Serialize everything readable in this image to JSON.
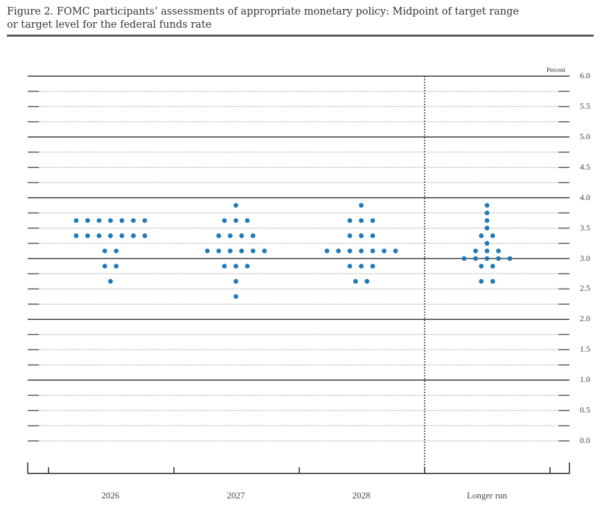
{
  "figure": {
    "title": "Figure 2. FOMC participants’ assessments of appropriate monetary policy: Midpoint of target range or target level for the federal funds rate",
    "title_line1": "Figure 2. FOMC participants’ assessments of appropriate monetary policy: Midpoint of target range",
    "title_line2": "or target level for the federal funds rate",
    "unit_label": "Percent"
  },
  "colors": {
    "dot": "#1f7ab8",
    "grid_solid": "#333333",
    "grid_dotted": "#999999"
  },
  "chart_data": {
    "type": "scatter",
    "subtype": "dot-plot",
    "title": "FOMC participants’ assessments of appropriate monetary policy: Midpoint of target range or target level for the federal funds rate",
    "xlabel": "",
    "ylabel": "Percent",
    "ylim": [
      0.0,
      6.0
    ],
    "yticks": [
      0.0,
      0.5,
      1.0,
      1.5,
      2.0,
      2.5,
      3.0,
      3.5,
      4.0,
      4.5,
      5.0,
      5.5,
      6.0
    ],
    "ytick_labels": [
      "0.0",
      "0.5",
      "1.0",
      "1.5",
      "2.0",
      "2.5",
      "3.0",
      "3.5",
      "4.0",
      "4.5",
      "5.0",
      "5.5",
      "6.0"
    ],
    "grid": {
      "minor_step": 0.25,
      "solid_at": [
        1.0,
        2.0,
        3.0,
        4.0,
        5.0,
        6.0
      ],
      "dotted_elsewhere": true
    },
    "categories": [
      "2026",
      "2027",
      "2028",
      "Longer run"
    ],
    "separator_before": "Longer run",
    "series": [
      {
        "name": "2026",
        "points": [
          {
            "rate": 3.625,
            "count": 7
          },
          {
            "rate": 3.375,
            "count": 7
          },
          {
            "rate": 3.125,
            "count": 2
          },
          {
            "rate": 2.875,
            "count": 2
          },
          {
            "rate": 2.625,
            "count": 1
          }
        ]
      },
      {
        "name": "2027",
        "points": [
          {
            "rate": 3.875,
            "count": 1
          },
          {
            "rate": 3.625,
            "count": 3
          },
          {
            "rate": 3.375,
            "count": 4
          },
          {
            "rate": 3.125,
            "count": 6
          },
          {
            "rate": 2.875,
            "count": 3
          },
          {
            "rate": 2.625,
            "count": 1
          },
          {
            "rate": 2.375,
            "count": 1
          }
        ]
      },
      {
        "name": "2028",
        "points": [
          {
            "rate": 3.875,
            "count": 1
          },
          {
            "rate": 3.625,
            "count": 3
          },
          {
            "rate": 3.375,
            "count": 3
          },
          {
            "rate": 3.125,
            "count": 7
          },
          {
            "rate": 2.875,
            "count": 3
          },
          {
            "rate": 2.625,
            "count": 2
          }
        ]
      },
      {
        "name": "Longer run",
        "points": [
          {
            "rate": 3.875,
            "count": 1
          },
          {
            "rate": 3.75,
            "count": 1
          },
          {
            "rate": 3.625,
            "count": 1
          },
          {
            "rate": 3.5,
            "count": 1
          },
          {
            "rate": 3.375,
            "count": 2
          },
          {
            "rate": 3.25,
            "count": 1
          },
          {
            "rate": 3.125,
            "count": 3
          },
          {
            "rate": 3.0,
            "count": 5
          },
          {
            "rate": 2.875,
            "count": 2
          },
          {
            "rate": 2.625,
            "count": 2
          }
        ]
      }
    ]
  }
}
